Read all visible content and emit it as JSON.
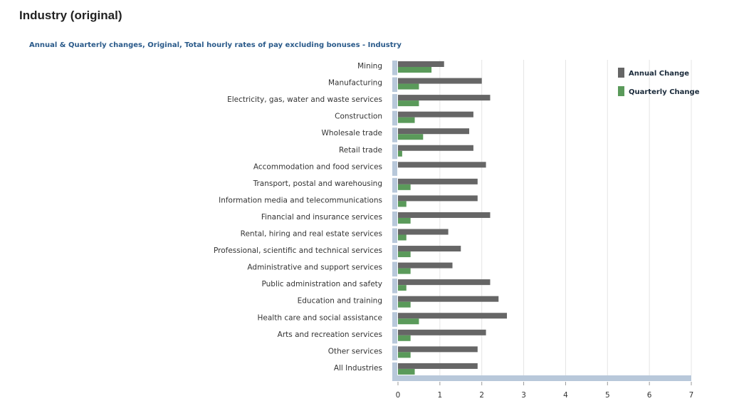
{
  "page_title": "Industry (original)",
  "chart_data": {
    "type": "bar",
    "orientation": "horizontal",
    "title": "Annual & Quarterly changes, Original, Total hourly rates of pay excluding bonuses - Industry",
    "categories": [
      "Mining",
      "Manufacturing",
      "Electricity, gas, water and waste services",
      "Construction",
      "Wholesale trade",
      "Retail trade",
      "Accommodation and food services",
      "Transport, postal and warehousing",
      "Information media and telecommunications",
      "Financial and insurance services",
      "Rental, hiring and real estate services",
      "Professional, scientific and technical services",
      "Administrative and support services",
      "Public administration and safety",
      "Education and training",
      "Health care and social assistance",
      "Arts and recreation services",
      "Other services",
      "All Industries"
    ],
    "series": [
      {
        "name": "Annual Change",
        "color": "#666666",
        "values": [
          1.1,
          2.0,
          2.2,
          1.8,
          1.7,
          1.8,
          2.1,
          1.9,
          1.9,
          2.2,
          1.2,
          1.5,
          1.3,
          2.2,
          2.4,
          2.6,
          2.1,
          1.9,
          1.9
        ]
      },
      {
        "name": "Quarterly Change",
        "color": "#5a9a5a",
        "values": [
          0.8,
          0.5,
          0.5,
          0.4,
          0.6,
          0.1,
          0.0,
          0.3,
          0.2,
          0.3,
          0.2,
          0.3,
          0.3,
          0.2,
          0.3,
          0.5,
          0.3,
          0.3,
          0.4
        ]
      }
    ],
    "xlim": [
      0,
      7
    ],
    "xticks": [
      "0",
      "1",
      "2",
      "3",
      "4",
      "5",
      "6",
      "7"
    ],
    "grid": true,
    "legend": "top-right"
  }
}
